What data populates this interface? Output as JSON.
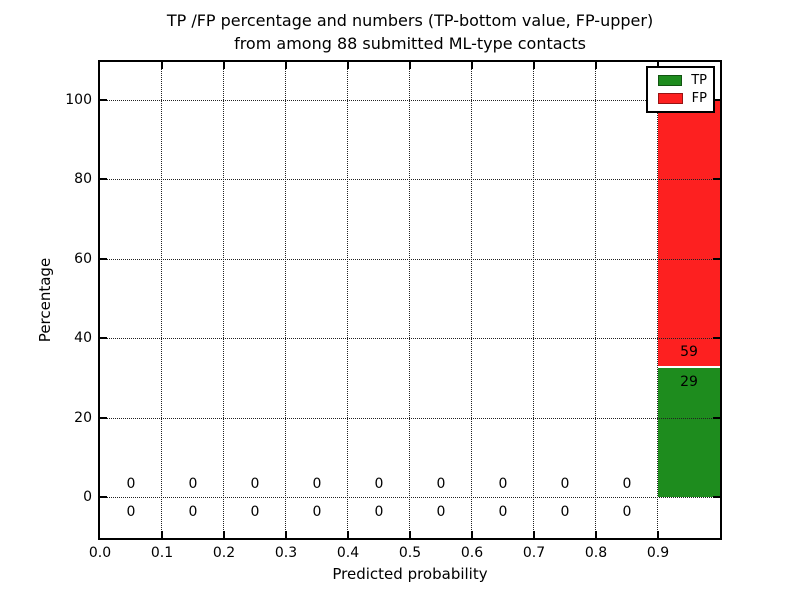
{
  "chart_data": {
    "type": "bar",
    "stacked": true,
    "title_line1": "TP /FP percentage and numbers (TP-bottom value, FP-upper)",
    "title_line2": "from among 88 submitted ML-type contacts",
    "xlabel": "Predicted probability",
    "ylabel": "Percentage",
    "total_contacts": 88,
    "xlim": [
      0.0,
      1.0
    ],
    "ylim": [
      -10.6,
      110.0
    ],
    "x_tick_labels": [
      "0.0",
      "0.1",
      "0.2",
      "0.3",
      "0.4",
      "0.5",
      "0.6",
      "0.7",
      "0.8",
      "0.9"
    ],
    "y_ticks": [
      0,
      20,
      40,
      60,
      80,
      100
    ],
    "y_tick_labels": [
      "0",
      "20",
      "40",
      "60",
      "80",
      "100"
    ],
    "grid": "dotted",
    "legend_position": "upper right",
    "bin_edges": [
      0.0,
      0.1,
      0.2,
      0.3,
      0.4,
      0.5,
      0.6,
      0.7,
      0.8,
      0.9,
      1.0
    ],
    "bin_centers": [
      0.05,
      0.15,
      0.25,
      0.35,
      0.45,
      0.55,
      0.65,
      0.75,
      0.85,
      0.95
    ],
    "series": [
      {
        "name": "TP",
        "role": "bottom",
        "color": "#1e8c1e",
        "counts": [
          0,
          0,
          0,
          0,
          0,
          0,
          0,
          0,
          0,
          29
        ],
        "percents": [
          0,
          0,
          0,
          0,
          0,
          0,
          0,
          0,
          0,
          32.95
        ]
      },
      {
        "name": "FP",
        "role": "top",
        "color": "#fd2020",
        "counts": [
          0,
          0,
          0,
          0,
          0,
          0,
          0,
          0,
          0,
          59
        ],
        "percents": [
          0,
          0,
          0,
          0,
          0,
          0,
          0,
          0,
          0,
          67.05
        ]
      }
    ]
  }
}
